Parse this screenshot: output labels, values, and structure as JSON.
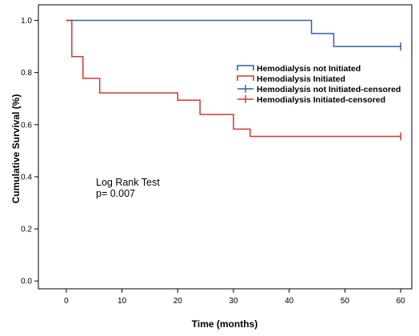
{
  "chart_data": {
    "type": "line",
    "subtype": "kaplan-meier step",
    "title": "",
    "xlabel": "Time (months)",
    "ylabel": "Cumulative Survival (%)",
    "xlim": [
      -5,
      62
    ],
    "ylim": [
      -0.03,
      1.06
    ],
    "xticks": [
      0,
      10,
      20,
      30,
      40,
      50,
      60
    ],
    "xtick_labels": [
      "0",
      "10",
      "20",
      "30",
      "40",
      "50",
      "60"
    ],
    "yticks": [
      0.0,
      0.2,
      0.4,
      0.6,
      0.8,
      1.0
    ],
    "ytick_labels": [
      "0.0",
      "0.2",
      "0.4",
      "0.6",
      "0.8",
      "1.0"
    ],
    "grid": false,
    "legend_position": "right",
    "series": [
      {
        "name": "Hemodialysis not Initiated",
        "color": "#2f5fae",
        "x": [
          0,
          44,
          48,
          60
        ],
        "y": [
          1.0,
          0.95,
          0.9,
          0.9
        ]
      },
      {
        "name": "Hemodialysis Initiated",
        "color": "#d9342b",
        "x": [
          0,
          1,
          3,
          6,
          20,
          24,
          30,
          33,
          60
        ],
        "y": [
          1.0,
          0.861,
          0.778,
          0.722,
          0.694,
          0.639,
          0.583,
          0.555,
          0.555
        ]
      }
    ],
    "censored": [
      {
        "name": "Hemodialysis not Initiated-censored",
        "color": "#2f5fae",
        "x": [
          60
        ],
        "y": [
          0.9
        ]
      },
      {
        "name": "Hemodialysis Initiated-censored",
        "color": "#d9342b",
        "x": [
          60
        ],
        "y": [
          0.555
        ]
      }
    ],
    "annotations": [
      "Log Rank Test",
      "p= 0.007"
    ]
  }
}
